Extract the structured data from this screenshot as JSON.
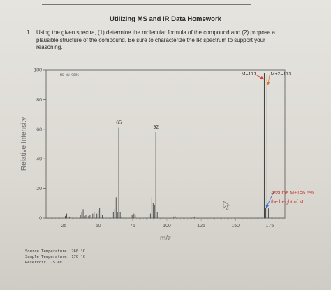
{
  "document": {
    "title": "Utilizing MS and IR Data Homework",
    "question_number": "1.",
    "question_lines": [
      "Using the given spectra, (1) determine the molecular formula of the compound and (2) propose a",
      "plausible structure of the compound. Be sure to characterize the IR spectrum to support your",
      "reasoning."
    ]
  },
  "chart_data": {
    "type": "bar",
    "spectrum_id": "MS-NU-9695",
    "xlabel": "m/z",
    "ylabel": "Relative Intensity",
    "xlim": [
      12,
      186
    ],
    "ylim": [
      0,
      100
    ],
    "x_ticks": [
      25,
      50,
      75,
      100,
      125,
      150,
      175
    ],
    "y_ticks": [
      0,
      20,
      40,
      60,
      80,
      100
    ],
    "peaks": [
      {
        "mz": 26,
        "intensity": 1.5
      },
      {
        "mz": 27,
        "intensity": 3
      },
      {
        "mz": 29,
        "intensity": 1
      },
      {
        "mz": 37,
        "intensity": 2
      },
      {
        "mz": 38,
        "intensity": 4
      },
      {
        "mz": 39,
        "intensity": 6
      },
      {
        "mz": 40,
        "intensity": 1.5
      },
      {
        "mz": 41,
        "intensity": 2
      },
      {
        "mz": 43,
        "intensity": 1.5
      },
      {
        "mz": 44,
        "intensity": 2
      },
      {
        "mz": 46,
        "intensity": 3
      },
      {
        "mz": 47,
        "intensity": 4
      },
      {
        "mz": 49,
        "intensity": 3
      },
      {
        "mz": 50,
        "intensity": 5
      },
      {
        "mz": 51,
        "intensity": 7
      },
      {
        "mz": 52,
        "intensity": 3
      },
      {
        "mz": 53,
        "intensity": 2
      },
      {
        "mz": 61,
        "intensity": 4
      },
      {
        "mz": 62,
        "intensity": 6
      },
      {
        "mz": 63,
        "intensity": 14
      },
      {
        "mz": 64,
        "intensity": 4
      },
      {
        "mz": 65,
        "intensity": 61
      },
      {
        "mz": 66,
        "intensity": 4
      },
      {
        "mz": 67,
        "intensity": 1
      },
      {
        "mz": 74,
        "intensity": 2
      },
      {
        "mz": 75,
        "intensity": 2
      },
      {
        "mz": 76,
        "intensity": 3
      },
      {
        "mz": 77,
        "intensity": 2
      },
      {
        "mz": 87,
        "intensity": 2
      },
      {
        "mz": 88,
        "intensity": 3
      },
      {
        "mz": 89,
        "intensity": 14
      },
      {
        "mz": 90,
        "intensity": 10
      },
      {
        "mz": 91,
        "intensity": 9
      },
      {
        "mz": 92,
        "intensity": 58
      },
      {
        "mz": 93,
        "intensity": 4
      },
      {
        "mz": 105,
        "intensity": 1
      },
      {
        "mz": 106,
        "intensity": 1.5
      },
      {
        "mz": 119,
        "intensity": 1
      },
      {
        "mz": 120,
        "intensity": 1
      },
      {
        "mz": 171,
        "intensity": 98
      },
      {
        "mz": 172,
        "intensity": 7
      },
      {
        "mz": 173,
        "intensity": 96
      },
      {
        "mz": 174,
        "intensity": 6.5
      }
    ],
    "annotations": [
      {
        "text": "65",
        "mz": 65,
        "intensity": 61
      },
      {
        "text": "92",
        "mz": 92,
        "intensity": 58
      },
      {
        "text": "M=171",
        "mz": 171,
        "intensity": 98
      },
      {
        "text": "M+2=173",
        "mz": 173,
        "intensity": 96
      }
    ],
    "note_lines": [
      "Assume M+1=6.6%",
      "the height of M"
    ]
  },
  "footer": {
    "lines": [
      "Source Temperature: 260 °C",
      "Sample Temperature: 170 °C",
      "Reservoir, 75 eV"
    ]
  },
  "colors": {
    "peak": "#444444",
    "annotation_text": "#c0392b",
    "arrow_m": "#d04040",
    "arrow_m2": "#e0782a",
    "arrow_note": "#2f6fd0"
  }
}
